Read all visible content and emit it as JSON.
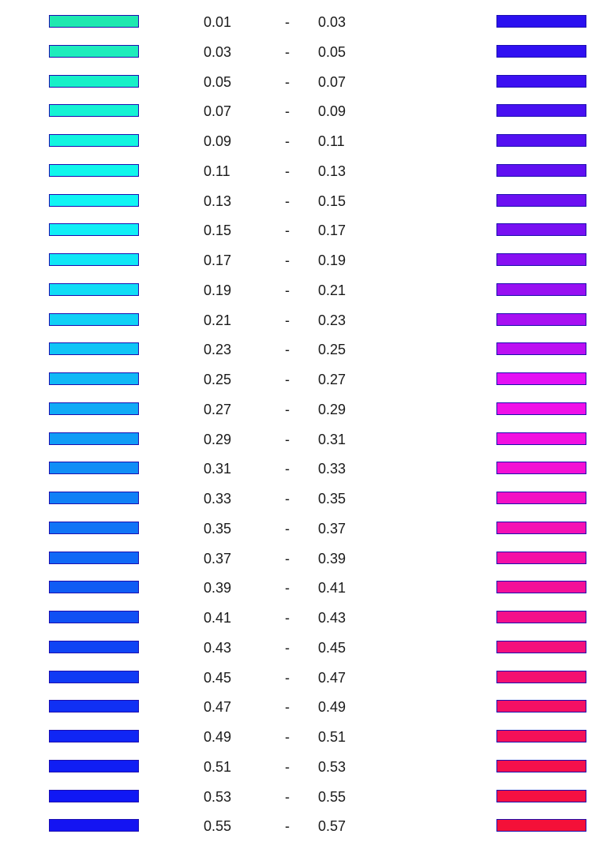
{
  "chart_data": {
    "type": "legend",
    "separator": "-",
    "entries": [
      {
        "lo": "0.01",
        "hi": "0.03",
        "left_color": "#1fe8b0",
        "right_color": "#2a10f0"
      },
      {
        "lo": "0.03",
        "hi": "0.05",
        "left_color": "#1fecbc",
        "right_color": "#3010f2"
      },
      {
        "lo": "0.05",
        "hi": "0.07",
        "left_color": "#18f0c8",
        "right_color": "#3c10f2"
      },
      {
        "lo": "0.07",
        "hi": "0.09",
        "left_color": "#15f2d4",
        "right_color": "#4810f2"
      },
      {
        "lo": "0.09",
        "hi": "0.11",
        "left_color": "#12f4e0",
        "right_color": "#5410f2"
      },
      {
        "lo": "0.11",
        "hi": "0.13",
        "left_color": "#10f6ec",
        "right_color": "#6010f2"
      },
      {
        "lo": "0.13",
        "hi": "0.15",
        "left_color": "#10f4f4",
        "right_color": "#6c10f2"
      },
      {
        "lo": "0.15",
        "hi": "0.17",
        "left_color": "#10eef6",
        "right_color": "#7810f2"
      },
      {
        "lo": "0.17",
        "hi": "0.19",
        "left_color": "#10e6f6",
        "right_color": "#8810f2"
      },
      {
        "lo": "0.19",
        "hi": "0.21",
        "left_color": "#10dcf6",
        "right_color": "#9810f2"
      },
      {
        "lo": "0.21",
        "hi": "0.23",
        "left_color": "#10d0f6",
        "right_color": "#a810f2"
      },
      {
        "lo": "0.23",
        "hi": "0.25",
        "left_color": "#10c4f6",
        "right_color": "#bc10f2"
      },
      {
        "lo": "0.25",
        "hi": "0.27",
        "left_color": "#10b8f6",
        "right_color": "#e410f4"
      },
      {
        "lo": "0.27",
        "hi": "0.29",
        "left_color": "#10aaf6",
        "right_color": "#f010e8"
      },
      {
        "lo": "0.29",
        "hi": "0.31",
        "left_color": "#109cf6",
        "right_color": "#f210e0"
      },
      {
        "lo": "0.31",
        "hi": "0.33",
        "left_color": "#108ef6",
        "right_color": "#f410d4"
      },
      {
        "lo": "0.33",
        "hi": "0.35",
        "left_color": "#1080f6",
        "right_color": "#f410c4"
      },
      {
        "lo": "0.35",
        "hi": "0.37",
        "left_color": "#1074f6",
        "right_color": "#f410b4"
      },
      {
        "lo": "0.37",
        "hi": "0.39",
        "left_color": "#1068f6",
        "right_color": "#f410a6"
      },
      {
        "lo": "0.39",
        "hi": "0.41",
        "left_color": "#105cf4",
        "right_color": "#f41098"
      },
      {
        "lo": "0.41",
        "hi": "0.43",
        "left_color": "#1050f4",
        "right_color": "#f4108a"
      },
      {
        "lo": "0.43",
        "hi": "0.45",
        "left_color": "#1044f4",
        "right_color": "#f4107c"
      },
      {
        "lo": "0.45",
        "hi": "0.47",
        "left_color": "#103af4",
        "right_color": "#f41070"
      },
      {
        "lo": "0.47",
        "hi": "0.49",
        "left_color": "#1030f4",
        "right_color": "#f41064"
      },
      {
        "lo": "0.49",
        "hi": "0.51",
        "left_color": "#1026f4",
        "right_color": "#f41058"
      },
      {
        "lo": "0.51",
        "hi": "0.53",
        "left_color": "#101ef4",
        "right_color": "#f4104c"
      },
      {
        "lo": "0.53",
        "hi": "0.55",
        "left_color": "#1018f4",
        "right_color": "#f41042"
      },
      {
        "lo": "0.55",
        "hi": "0.57",
        "left_color": "#1414f2",
        "right_color": "#f41038"
      }
    ]
  }
}
